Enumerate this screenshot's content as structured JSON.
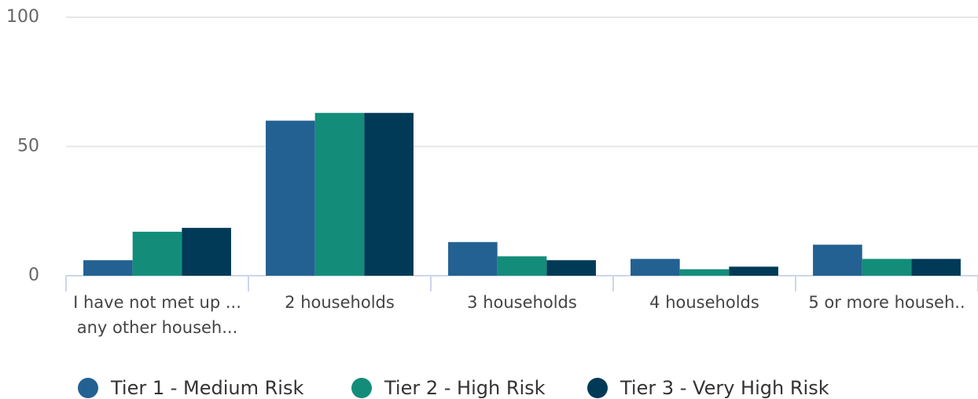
{
  "chart_data": {
    "type": "bar",
    "categories": [
      "I have not met up ... any other househ...",
      "2 households",
      "3 households",
      "4 households",
      "5 or more househ.."
    ],
    "series": [
      {
        "name": "Tier 1 - Medium Risk",
        "color": "#236192",
        "values": [
          6,
          60,
          13,
          6.5,
          12
        ]
      },
      {
        "name": "Tier 2 - High Risk",
        "color": "#138d7a",
        "values": [
          17,
          63,
          7.5,
          2.5,
          6.5
        ]
      },
      {
        "name": "Tier 3 - Very High Risk",
        "color": "#003a57",
        "values": [
          18.5,
          63,
          6,
          3.5,
          6.5
        ]
      }
    ],
    "ylim": [
      0,
      100
    ],
    "yticks": [
      0,
      50,
      100
    ],
    "grid": true,
    "legend": "bottom"
  }
}
